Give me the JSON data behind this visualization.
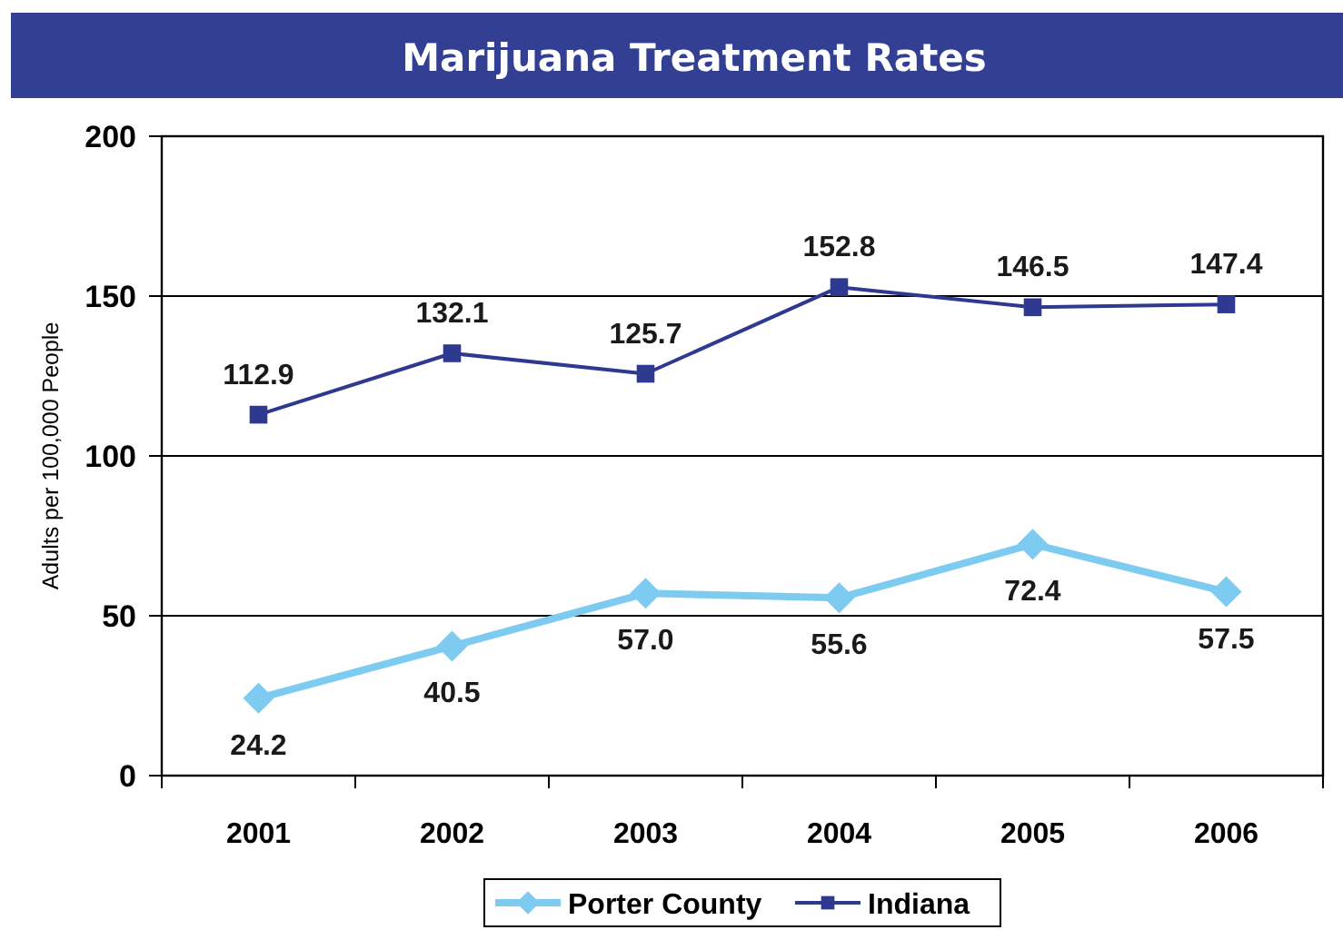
{
  "chart_data": {
    "type": "line",
    "title": "Marijuana Treatment Rates",
    "ylabel": "Adults per 100,000 People",
    "categories": [
      "2001",
      "2002",
      "2003",
      "2004",
      "2005",
      "2006"
    ],
    "series": [
      {
        "name": "Porter County",
        "color": "#7dcbf0",
        "values": [
          24.2,
          40.5,
          57.0,
          55.6,
          72.4,
          57.5
        ],
        "value_labels": [
          "24.2",
          "40.5",
          "57.0",
          "55.6",
          "72.4",
          "57.5"
        ],
        "marker": "diamond"
      },
      {
        "name": "Indiana",
        "color": "#2e3a90",
        "values": [
          112.9,
          132.1,
          125.7,
          152.8,
          146.5,
          147.4
        ],
        "value_labels": [
          "112.9",
          "132.1",
          "125.7",
          "152.8",
          "146.5",
          "147.4"
        ],
        "marker": "square"
      }
    ],
    "ylim": [
      0,
      200
    ],
    "yticks": [
      0,
      50,
      100,
      150,
      200
    ],
    "grid": "y",
    "legend": "bottom",
    "line_style": "solid"
  }
}
